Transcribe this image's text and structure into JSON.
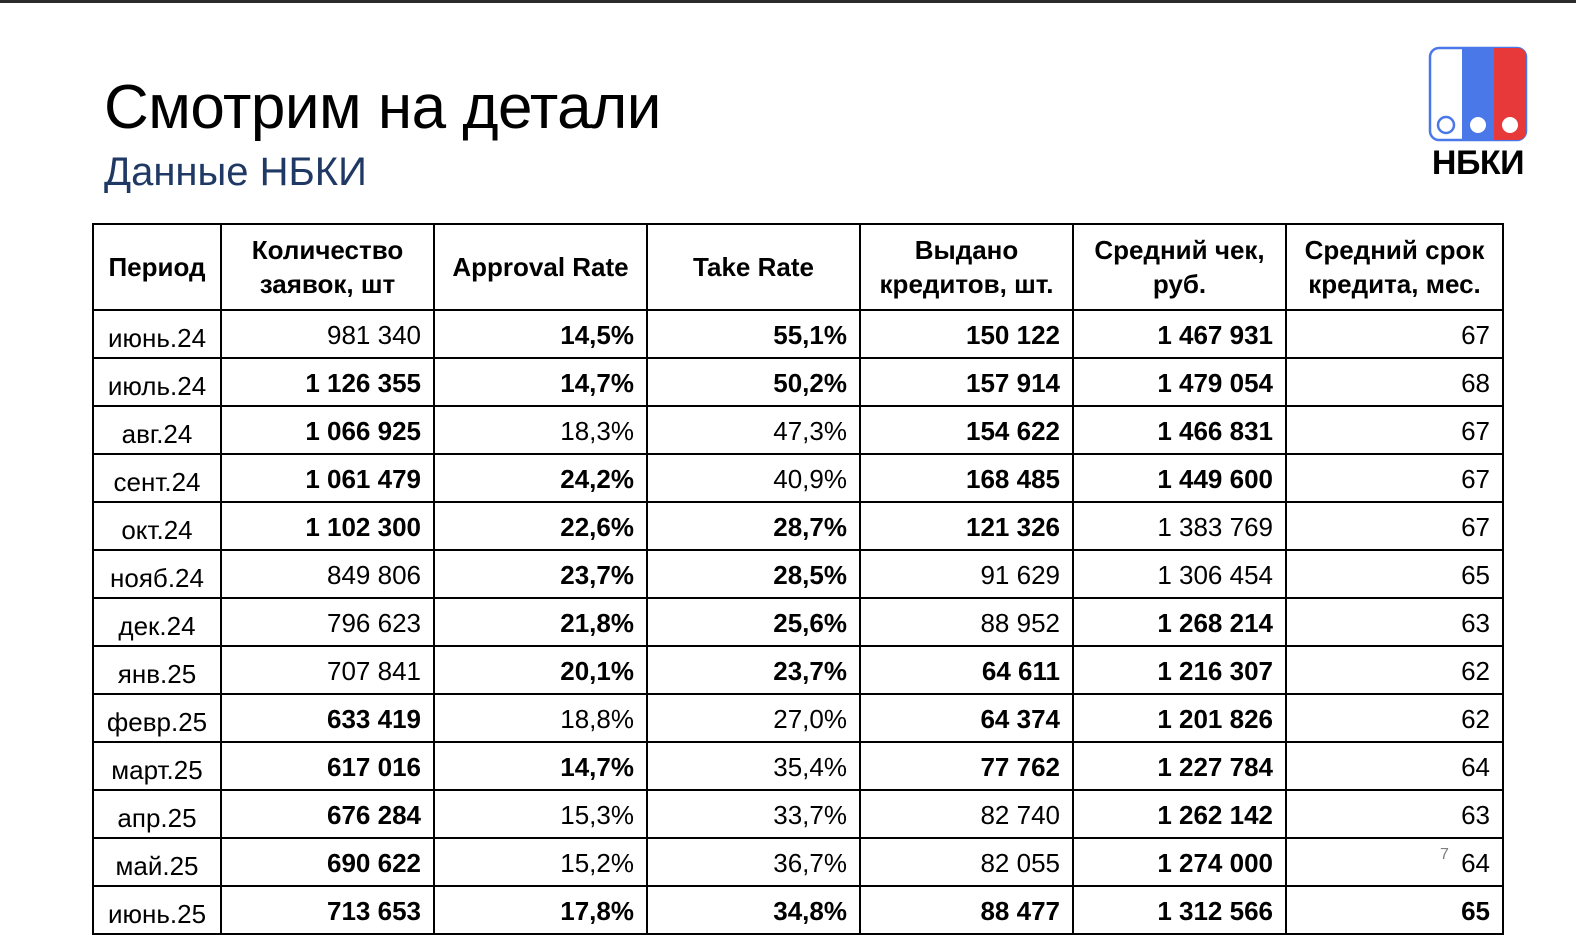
{
  "title": "Смотрим на детали",
  "subtitle": "Данные НБКИ",
  "logo": {
    "text": "НБКИ",
    "colors": {
      "white_bar": "#ffffff",
      "blue_bar": "#4a78e8",
      "red_bar": "#e8393a",
      "outline": "#4a78e8"
    }
  },
  "table": {
    "headers": [
      "Период",
      "Количество заявок, шт",
      "Approval Rate",
      "Take Rate",
      "Выдано кредитов,  шт.",
      "Средний чек, руб.",
      "Средний срок кредита, мес."
    ],
    "rows": [
      {
        "period": "июнь.24",
        "cells": [
          {
            "v": "981 340",
            "s": ""
          },
          {
            "v": "14,5%",
            "s": "r"
          },
          {
            "v": "55,1%",
            "s": "g"
          },
          {
            "v": "150 122",
            "s": "g"
          },
          {
            "v": "1 467 931",
            "s": "g"
          },
          {
            "v": "67",
            "s": ""
          }
        ]
      },
      {
        "period": "июль.24",
        "cells": [
          {
            "v": "1 126 355",
            "s": "g"
          },
          {
            "v": "14,7%",
            "s": "r"
          },
          {
            "v": "50,2%",
            "s": "g"
          },
          {
            "v": "157 914",
            "s": "g"
          },
          {
            "v": "1 479 054",
            "s": "g"
          },
          {
            "v": "68",
            "s": ""
          }
        ]
      },
      {
        "period": "авг.24",
        "cells": [
          {
            "v": "1 066 925",
            "s": "g"
          },
          {
            "v": "18,3%",
            "s": ""
          },
          {
            "v": "47,3%",
            "s": ""
          },
          {
            "v": "154 622",
            "s": "g"
          },
          {
            "v": "1 466 831",
            "s": "g"
          },
          {
            "v": "67",
            "s": ""
          }
        ]
      },
      {
        "period": "сент.24",
        "cells": [
          {
            "v": "1 061 479",
            "s": "g"
          },
          {
            "v": "24,2%",
            "s": "g"
          },
          {
            "v": "40,9%",
            "s": ""
          },
          {
            "v": "168 485",
            "s": "g"
          },
          {
            "v": "1 449 600",
            "s": "g"
          },
          {
            "v": "67",
            "s": ""
          }
        ]
      },
      {
        "period": "окт.24",
        "cells": [
          {
            "v": "1 102 300",
            "s": "g"
          },
          {
            "v": "22,6%",
            "s": "g"
          },
          {
            "v": "28,7%",
            "s": "r"
          },
          {
            "v": "121 326",
            "s": "g"
          },
          {
            "v": "1 383 769",
            "s": ""
          },
          {
            "v": "67",
            "s": ""
          }
        ]
      },
      {
        "period": "нояб.24",
        "cells": [
          {
            "v": "849 806",
            "s": ""
          },
          {
            "v": "23,7%",
            "s": "g"
          },
          {
            "v": "28,5%",
            "s": "r"
          },
          {
            "v": "91 629",
            "s": ""
          },
          {
            "v": "1 306 454",
            "s": ""
          },
          {
            "v": "65",
            "s": ""
          }
        ]
      },
      {
        "period": "дек.24",
        "cells": [
          {
            "v": "796 623",
            "s": ""
          },
          {
            "v": "21,8%",
            "s": "g"
          },
          {
            "v": "25,6%",
            "s": "r"
          },
          {
            "v": "88 952",
            "s": ""
          },
          {
            "v": "1 268 214",
            "s": "r"
          },
          {
            "v": "63",
            "s": ""
          }
        ]
      },
      {
        "period": "янв.25",
        "cells": [
          {
            "v": "707 841",
            "s": ""
          },
          {
            "v": "20,1%",
            "s": "g"
          },
          {
            "v": "23,7%",
            "s": "r"
          },
          {
            "v": "64 611",
            "s": "r"
          },
          {
            "v": "1 216 307",
            "s": "r"
          },
          {
            "v": "62",
            "s": ""
          }
        ]
      },
      {
        "period": "февр.25",
        "cells": [
          {
            "v": "633 419",
            "s": "r"
          },
          {
            "v": "18,8%",
            "s": ""
          },
          {
            "v": "27,0%",
            "s": ""
          },
          {
            "v": "64 374",
            "s": "r"
          },
          {
            "v": "1 201 826",
            "s": "r"
          },
          {
            "v": "62",
            "s": ""
          }
        ]
      },
      {
        "period": "март.25",
        "cells": [
          {
            "v": "617 016",
            "s": "r"
          },
          {
            "v": "14,7%",
            "s": "r"
          },
          {
            "v": "35,4%",
            "s": ""
          },
          {
            "v": "77 762",
            "s": "r"
          },
          {
            "v": "1 227 784",
            "s": "r"
          },
          {
            "v": "64",
            "s": ""
          }
        ]
      },
      {
        "period": "апр.25",
        "cells": [
          {
            "v": "676 284",
            "s": "r"
          },
          {
            "v": "15,3%",
            "s": ""
          },
          {
            "v": "33,7%",
            "s": ""
          },
          {
            "v": "82 740",
            "s": ""
          },
          {
            "v": "1 262 142",
            "s": "r"
          },
          {
            "v": "63",
            "s": ""
          }
        ]
      },
      {
        "period": "май.25",
        "cells": [
          {
            "v": "690 622",
            "s": "r"
          },
          {
            "v": "15,2%",
            "s": ""
          },
          {
            "v": "36,7%",
            "s": ""
          },
          {
            "v": "82 055",
            "s": ""
          },
          {
            "v": "1 274 000",
            "s": "r"
          },
          {
            "v": "64",
            "s": ""
          }
        ]
      },
      {
        "period": "июнь.25",
        "cells": [
          {
            "v": "713 653",
            "s": "b"
          },
          {
            "v": "17,8%",
            "s": "b"
          },
          {
            "v": "34,8%",
            "s": "b"
          },
          {
            "v": "88 477",
            "s": "b"
          },
          {
            "v": "1 312 566",
            "s": "b"
          },
          {
            "v": "65",
            "s": "b"
          }
        ]
      }
    ]
  },
  "page_number": "7",
  "colors": {
    "positive": "#3a7d2c",
    "negative": "#e03a2f",
    "subtitle": "#1f3864"
  }
}
